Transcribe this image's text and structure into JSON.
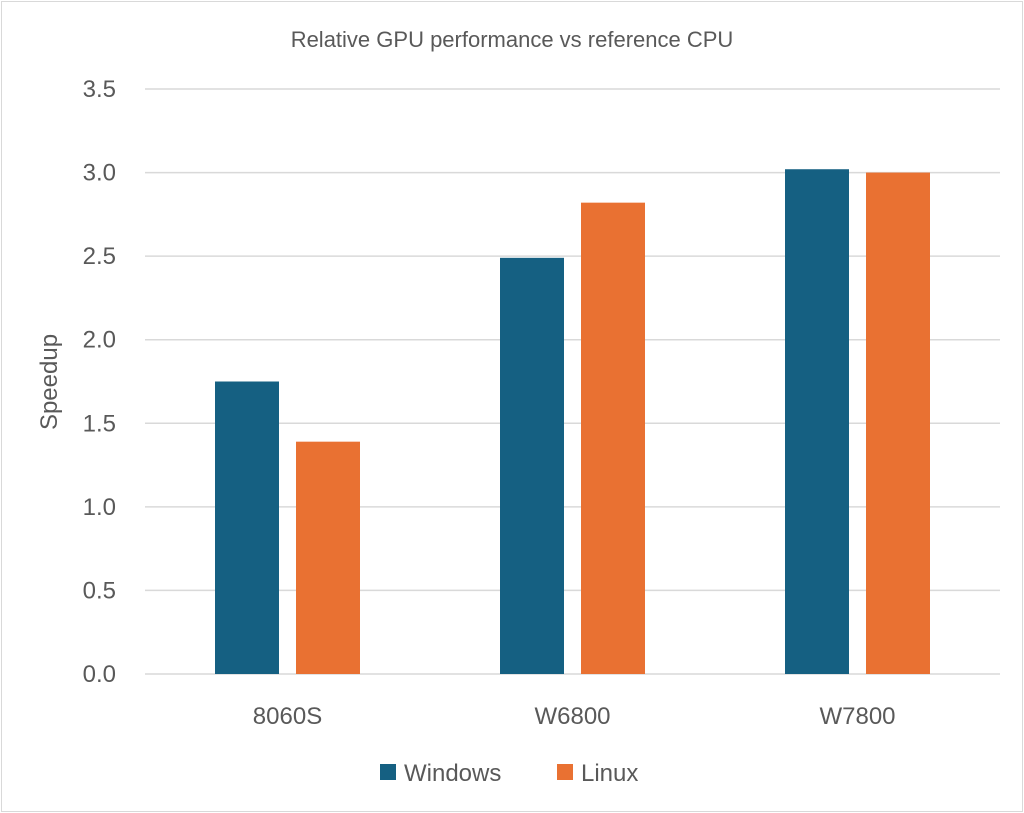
{
  "chart_data": {
    "type": "bar",
    "title": "Relative GPU performance vs reference CPU",
    "xlabel": "",
    "ylabel": "Speedup",
    "categories": [
      "8060S",
      "W6800",
      "W7800"
    ],
    "series": [
      {
        "name": "Windows",
        "color": "#156082",
        "values": [
          1.75,
          2.49,
          3.02
        ]
      },
      {
        "name": "Linux",
        "color": "#e97132",
        "values": [
          1.39,
          2.82,
          3.0
        ]
      }
    ],
    "ylim": [
      0,
      3.5
    ],
    "yticks": [
      "0.0",
      "0.5",
      "1.0",
      "1.5",
      "2.0",
      "2.5",
      "3.0",
      "3.5"
    ],
    "grid": true,
    "legend": "bottom"
  }
}
